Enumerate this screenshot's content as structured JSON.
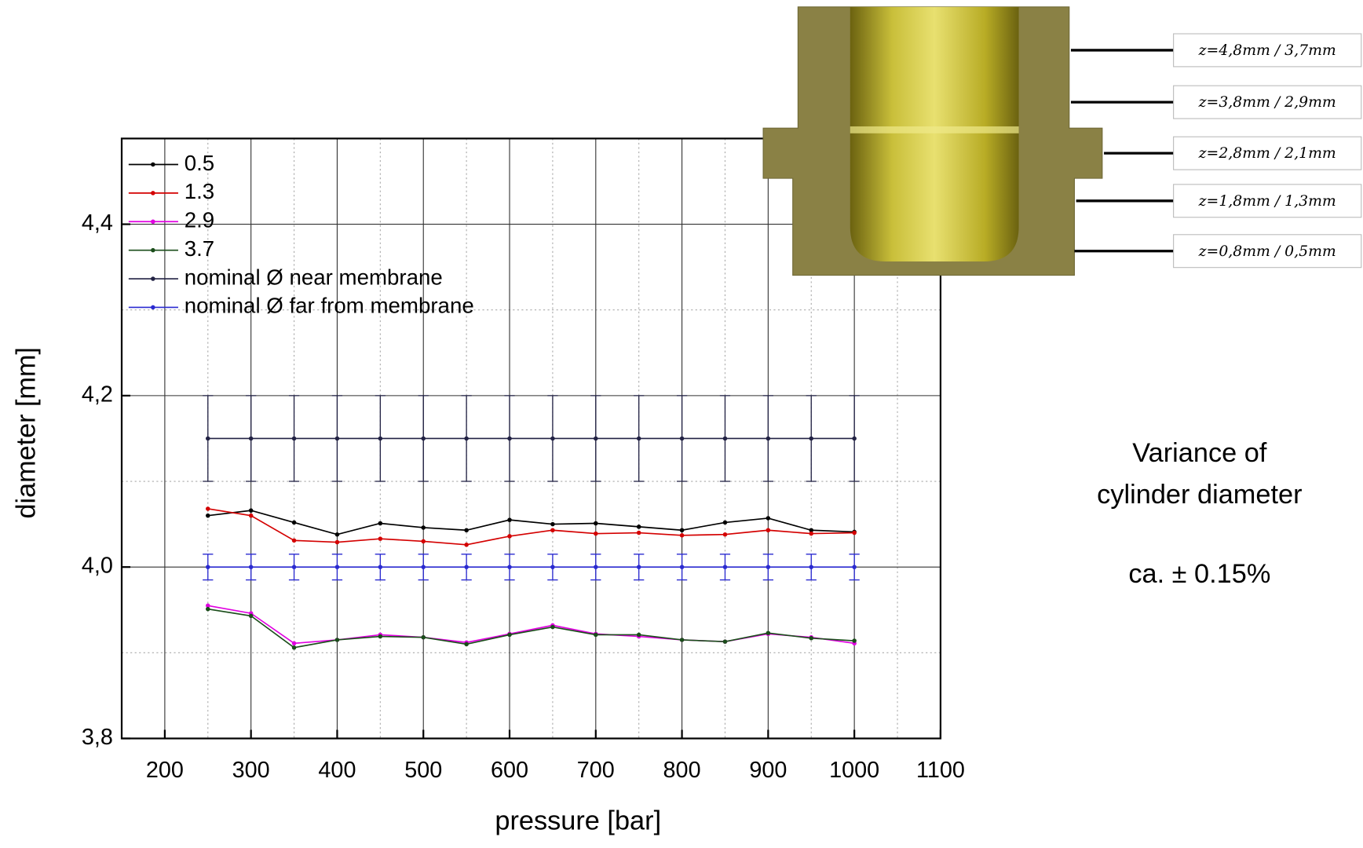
{
  "chart_data": {
    "type": "line",
    "x_label": "pressure [bar]",
    "y_label": "diameter [mm]",
    "x": [
      250,
      300,
      350,
      400,
      450,
      500,
      550,
      600,
      650,
      700,
      750,
      800,
      850,
      900,
      950,
      1000
    ],
    "series": [
      {
        "name": "0.5",
        "color": "#000000",
        "values": [
          4.06,
          4.066,
          4.052,
          4.038,
          4.051,
          4.046,
          4.043,
          4.055,
          4.05,
          4.051,
          4.047,
          4.043,
          4.052,
          4.057,
          4.043,
          4.041
        ]
      },
      {
        "name": "1.3",
        "color": "#d40000",
        "values": [
          4.068,
          4.06,
          4.031,
          4.029,
          4.033,
          4.03,
          4.026,
          4.036,
          4.043,
          4.039,
          4.04,
          4.037,
          4.038,
          4.043,
          4.039,
          4.04
        ]
      },
      {
        "name": "2.9",
        "color": "#e000e0",
        "values": [
          3.955,
          3.946,
          3.911,
          3.915,
          3.921,
          3.918,
          3.912,
          3.922,
          3.932,
          3.922,
          3.919,
          3.915,
          3.913,
          3.922,
          3.918,
          3.911
        ]
      },
      {
        "name": "3.7",
        "color": "#1a4d1a",
        "values": [
          3.951,
          3.943,
          3.906,
          3.915,
          3.919,
          3.918,
          3.91,
          3.921,
          3.93,
          3.921,
          3.921,
          3.915,
          3.913,
          3.923,
          3.917,
          3.914
        ]
      },
      {
        "name": "nominal Ø near membrane",
        "color": "#222244",
        "error": 0.05,
        "values": [
          4.15,
          4.15,
          4.15,
          4.15,
          4.15,
          4.15,
          4.15,
          4.15,
          4.15,
          4.15,
          4.15,
          4.15,
          4.15,
          4.15,
          4.15,
          4.15
        ]
      },
      {
        "name": "nominal Ø far from membrane",
        "color": "#2a2ad0",
        "error": 0.015,
        "values": [
          4.0,
          4.0,
          4.0,
          4.0,
          4.0,
          4.0,
          4.0,
          4.0,
          4.0,
          4.0,
          4.0,
          4.0,
          4.0,
          4.0,
          4.0,
          4.0
        ]
      }
    ],
    "xlim": [
      150,
      1100
    ],
    "ylim": [
      3.8,
      4.5
    ],
    "xticks": [
      200,
      300,
      400,
      500,
      600,
      700,
      800,
      900,
      1000,
      1100
    ],
    "yticks": [
      {
        "value": 3.8,
        "label": "3,8"
      },
      {
        "value": 4.0,
        "label": "4,0"
      },
      {
        "value": 4.2,
        "label": "4,2"
      },
      {
        "value": 4.4,
        "label": "4,4"
      }
    ],
    "grid": true,
    "legend": "upper left"
  },
  "figure": {
    "levels": [
      "z=4,8mm / 3,7mm",
      "z=3,8mm / 2,9mm",
      "z=2,8mm / 2,1mm",
      "z=1,8mm / 1,3mm",
      "z=0,8mm / 0,5mm"
    ]
  },
  "annotation": {
    "lines": [
      "Variance of",
      "cylinder diameter",
      "ca. ± 0.15%"
    ]
  }
}
